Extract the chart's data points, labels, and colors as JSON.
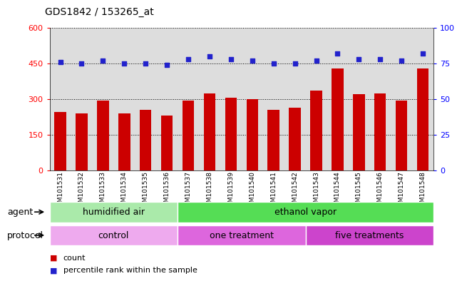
{
  "title": "GDS1842 / 153265_at",
  "samples": [
    "GSM101531",
    "GSM101532",
    "GSM101533",
    "GSM101534",
    "GSM101535",
    "GSM101536",
    "GSM101537",
    "GSM101538",
    "GSM101539",
    "GSM101540",
    "GSM101541",
    "GSM101542",
    "GSM101543",
    "GSM101544",
    "GSM101545",
    "GSM101546",
    "GSM101547",
    "GSM101548"
  ],
  "counts": [
    245,
    240,
    295,
    240,
    255,
    230,
    295,
    325,
    305,
    300,
    255,
    265,
    335,
    430,
    320,
    325,
    295,
    430
  ],
  "percentiles": [
    76,
    75,
    77,
    75,
    75,
    74,
    78,
    80,
    78,
    77,
    75,
    75,
    77,
    82,
    78,
    78,
    77,
    82
  ],
  "bar_color": "#cc0000",
  "dot_color": "#2222cc",
  "ylim_left": [
    0,
    600
  ],
  "ylim_right": [
    0,
    100
  ],
  "yticks_left": [
    0,
    150,
    300,
    450,
    600
  ],
  "yticks_right": [
    0,
    25,
    50,
    75,
    100
  ],
  "agent_groups": [
    {
      "text": "humidified air",
      "start": 0,
      "end": 6,
      "color": "#aaeaaa"
    },
    {
      "text": "ethanol vapor",
      "start": 6,
      "end": 18,
      "color": "#55dd55"
    }
  ],
  "protocol_groups": [
    {
      "text": "control",
      "start": 0,
      "end": 6,
      "color": "#eeaaee"
    },
    {
      "text": "one treatment",
      "start": 6,
      "end": 12,
      "color": "#dd66dd"
    },
    {
      "text": "five treatments",
      "start": 12,
      "end": 18,
      "color": "#cc44cc"
    }
  ],
  "legend_items": [
    {
      "color": "#cc0000",
      "label": "count"
    },
    {
      "color": "#2222cc",
      "label": "percentile rank within the sample"
    }
  ],
  "bg_color": "#ffffff",
  "plot_bg": "#dddddd",
  "title_fontsize": 10,
  "axis_fontsize": 8,
  "row_fontsize": 9,
  "legend_fontsize": 8
}
